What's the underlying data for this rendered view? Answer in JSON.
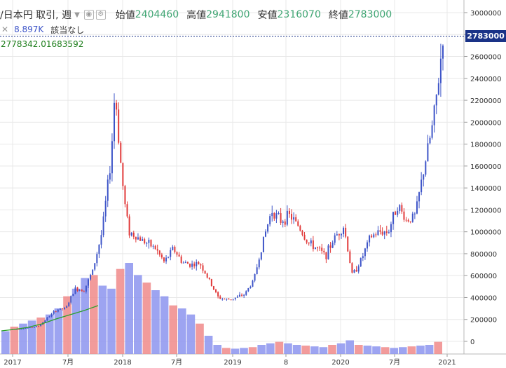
{
  "header": {
    "symbol": "/日本円 取引, 週",
    "dropdown_icon": "caret-down-icon",
    "icons": [
      "eye-icon",
      "gear-icon"
    ],
    "open_label": "始値",
    "open_value": "2404460",
    "high_label": "高値",
    "high_value": "2941800",
    "low_label": "安値",
    "low_value": "2316070",
    "close_label": "終値",
    "close_value": "2783000"
  },
  "volume_row": {
    "close_icon": "✕",
    "volume": "8.897K",
    "volume_color": "#3e55c8",
    "na_label": "該当なし"
  },
  "indicator_value": "2778342.01683592",
  "price_tag": "2783000",
  "colors": {
    "up": "#3e55c8",
    "down": "#e13a3a",
    "vol_up": "#8c94ef",
    "vol_down": "#f08a8a",
    "grid": "#e8e8e8",
    "ma": "#2aa02a",
    "price_line": "#1a3387"
  },
  "chart_data": {
    "type": "candlestick",
    "title": "",
    "ylabel": "",
    "xlabel": "",
    "price_axis_ticks": [
      3000000,
      2800000,
      2600000,
      2400000,
      2200000,
      2000000,
      1800000,
      1600000,
      1400000,
      1200000,
      1000000,
      800000,
      600000,
      400000,
      200000,
      0
    ],
    "price_axis_labels": [
      "3000000",
      "2800000",
      "2600000",
      "2400000",
      "2200000",
      "2000000",
      "1800000",
      "1600000",
      "1400000",
      "1200000",
      "1000000",
      "800000",
      "600000",
      "400000",
      "200000",
      "0"
    ],
    "x_axis_labels": [
      "2017",
      "7月",
      "2018",
      "7月",
      "2019",
      "8",
      "2020",
      "7月",
      "2021"
    ],
    "close_path": [
      [
        "2017-01-01",
        110000
      ],
      [
        "2017-02-01",
        118000
      ],
      [
        "2017-03-01",
        125000
      ],
      [
        "2017-04-01",
        140000
      ],
      [
        "2017-05-01",
        220000
      ],
      [
        "2017-06-01",
        290000
      ],
      [
        "2017-07-01",
        300000
      ],
      [
        "2017-08-01",
        480000
      ],
      [
        "2017-09-01",
        470000
      ],
      [
        "2017-10-01",
        650000
      ],
      [
        "2017-11-01",
        1000000
      ],
      [
        "2017-12-01",
        1650000
      ],
      [
        "2017-12-15",
        2300000
      ],
      [
        "2018-01-01",
        1700000
      ],
      [
        "2018-01-15",
        1300000
      ],
      [
        "2018-02-01",
        1000000
      ],
      [
        "2018-03-01",
        950000
      ],
      [
        "2018-04-01",
        900000
      ],
      [
        "2018-05-01",
        850000
      ],
      [
        "2018-06-01",
        720000
      ],
      [
        "2018-07-01",
        850000
      ],
      [
        "2018-08-01",
        720000
      ],
      [
        "2018-09-01",
        700000
      ],
      [
        "2018-10-01",
        710000
      ],
      [
        "2018-11-01",
        550000
      ],
      [
        "2018-12-01",
        400000
      ],
      [
        "2019-01-01",
        380000
      ],
      [
        "2019-02-01",
        400000
      ],
      [
        "2019-03-01",
        430000
      ],
      [
        "2019-04-01",
        560000
      ],
      [
        "2019-05-01",
        900000
      ],
      [
        "2019-06-01",
        1200000
      ],
      [
        "2019-07-01",
        1100000
      ],
      [
        "2019-08-01",
        1150000
      ],
      [
        "2019-09-01",
        1050000
      ],
      [
        "2019-10-01",
        900000
      ],
      [
        "2019-11-01",
        850000
      ],
      [
        "2019-12-01",
        780000
      ],
      [
        "2020-01-01",
        950000
      ],
      [
        "2020-02-01",
        1050000
      ],
      [
        "2020-03-01",
        600000
      ],
      [
        "2020-04-01",
        750000
      ],
      [
        "2020-05-01",
        950000
      ],
      [
        "2020-06-01",
        1000000
      ],
      [
        "2020-07-01",
        1000000
      ],
      [
        "2020-08-01",
        1250000
      ],
      [
        "2020-09-01",
        1100000
      ],
      [
        "2020-10-01",
        1150000
      ],
      [
        "2020-11-01",
        1600000
      ],
      [
        "2020-12-01",
        2000000
      ],
      [
        "2020-12-20",
        2400000
      ],
      [
        "2021-01-03",
        2783000
      ]
    ],
    "volume_path_note": "volume bars drawn at bottom; values are approximate relative magnitudes",
    "volume_values": [
      150000,
      180000,
      200000,
      220000,
      240000,
      260000,
      300000,
      380000,
      430000,
      500000,
      520000,
      450000,
      430000,
      560000,
      600000,
      520000,
      470000,
      420000,
      380000,
      320000,
      300000,
      260000,
      200000,
      120000,
      60000,
      40000,
      35000,
      40000,
      45000,
      60000,
      70000,
      80000,
      70000,
      60000,
      55000,
      50000,
      45000,
      60000,
      70000,
      90000,
      60000,
      55000,
      50000,
      45000,
      40000,
      45000,
      50000,
      55000,
      60000,
      80000
    ]
  }
}
